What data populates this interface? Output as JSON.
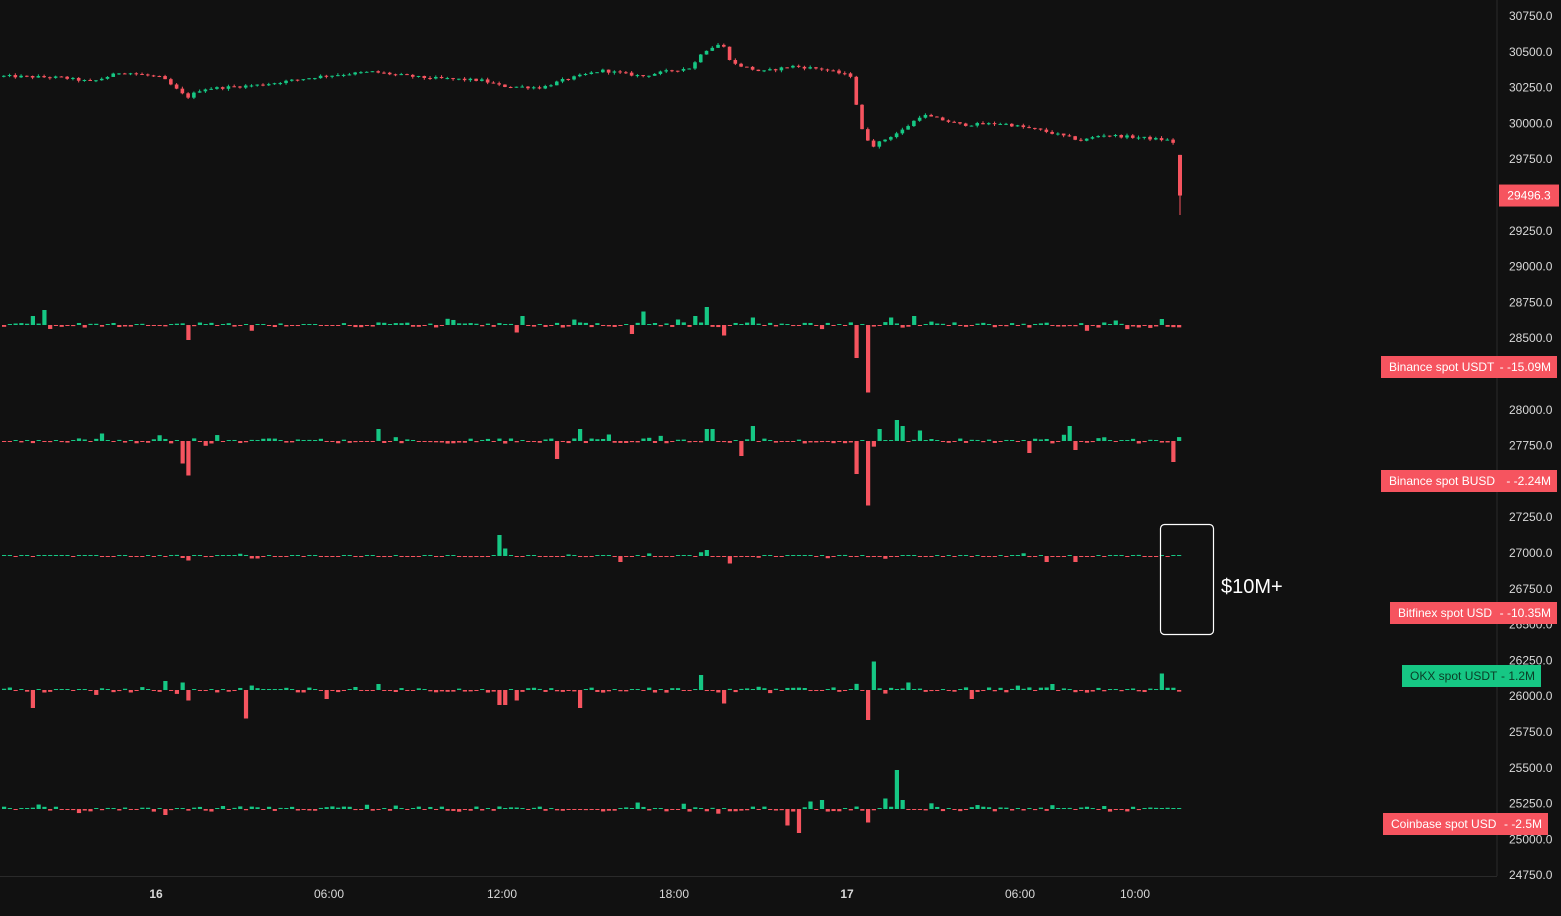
{
  "chart_data": {
    "type": "line",
    "kind": "candlestick price chart with stacked exchange net-flow (CVD delta) histograms",
    "price_axis": {
      "ticks": [
        "30750.0",
        "30500.0",
        "30250.0",
        "30000.0",
        "29750.0",
        "29500.0",
        "29250.0",
        "29000.0",
        "28750.0",
        "28500.0",
        "28250.0",
        "28000.0",
        "27750.0",
        "27500.0",
        "27250.0",
        "27000.0",
        "26750.0",
        "26500.0",
        "26250.0",
        "26000.0",
        "25750.0",
        "25500.0",
        "25250.0",
        "25000.0",
        "24750.0"
      ],
      "range": [
        24750,
        30750
      ],
      "current_price": "29496.3"
    },
    "time_axis": {
      "labels": [
        "16",
        "06:00",
        "12:00",
        "18:00",
        "17",
        "06:00",
        "10:00"
      ]
    },
    "price_series": {
      "knots": [
        [
          0,
          30330
        ],
        [
          60,
          30320
        ],
        [
          90,
          30290
        ],
        [
          120,
          30360
        ],
        [
          160,
          30320
        ],
        [
          185,
          30180
        ],
        [
          200,
          30240
        ],
        [
          260,
          30270
        ],
        [
          320,
          30330
        ],
        [
          370,
          30360
        ],
        [
          420,
          30320
        ],
        [
          480,
          30300
        ],
        [
          500,
          30260
        ],
        [
          540,
          30250
        ],
        [
          560,
          30300
        ],
        [
          600,
          30370
        ],
        [
          640,
          30330
        ],
        [
          670,
          30370
        ],
        [
          690,
          30390
        ],
        [
          700,
          30500
        ],
        [
          720,
          30560
        ],
        [
          730,
          30420
        ],
        [
          760,
          30360
        ],
        [
          790,
          30400
        ],
        [
          820,
          30380
        ],
        [
          850,
          30330
        ],
        [
          858,
          29980
        ],
        [
          870,
          29840
        ],
        [
          900,
          29950
        ],
        [
          920,
          30060
        ],
        [
          960,
          29990
        ],
        [
          1000,
          30000
        ],
        [
          1040,
          29950
        ],
        [
          1080,
          29880
        ],
        [
          1100,
          29920
        ],
        [
          1140,
          29900
        ],
        [
          1170,
          29880
        ],
        [
          1180,
          29780
        ]
      ],
      "last_candle": {
        "open": 29780,
        "high": 29780,
        "low": 29360,
        "close": 29496.3
      }
    },
    "panels": [
      {
        "name": "Binance spot USDT",
        "value": "-15.09M",
        "color": "#f6545f",
        "spikes": [
          [
            40,
            1.0
          ],
          [
            30,
            0.6
          ],
          [
            185,
            -1.0
          ],
          [
            520,
            0.6
          ],
          [
            512,
            -0.5
          ],
          [
            625,
            -0.6
          ],
          [
            638,
            0.9
          ],
          [
            703,
            1.2
          ],
          [
            690,
            0.6
          ],
          [
            720,
            -0.7
          ],
          [
            746,
            0.5
          ],
          [
            852,
            -2.2
          ],
          [
            862,
            -4.5
          ],
          [
            885,
            0.5
          ],
          [
            912,
            0.6
          ],
          [
            1180,
            -2.8
          ],
          [
            1157,
            0.4
          ],
          [
            1110,
            0.3
          ]
        ]
      },
      {
        "name": "Binance spot BUSD",
        "value": "-2.24M",
        "color": "#f6545f",
        "spikes": [
          [
            185,
            -2.3
          ],
          [
            180,
            -1.5
          ],
          [
            98,
            0.5
          ],
          [
            372,
            0.8
          ],
          [
            552,
            -1.2
          ],
          [
            575,
            0.8
          ],
          [
            700,
            0.8
          ],
          [
            710,
            0.8
          ],
          [
            738,
            -1.0
          ],
          [
            746,
            1.0
          ],
          [
            852,
            -2.2
          ],
          [
            862,
            -4.3
          ],
          [
            877,
            0.8
          ],
          [
            890,
            1.4
          ],
          [
            900,
            1.0
          ],
          [
            915,
            0.7
          ],
          [
            1025,
            -0.8
          ],
          [
            1063,
            1.0
          ],
          [
            1070,
            -0.6
          ],
          [
            1180,
            -2.6
          ],
          [
            1172,
            -1.4
          ]
        ]
      },
      {
        "name": "Bitfinex spot USD",
        "value": "-10.35M",
        "color": "#f6545f",
        "spikes": [
          [
            494,
            1.4
          ],
          [
            500,
            0.5
          ],
          [
            185,
            -0.3
          ],
          [
            703,
            0.4
          ],
          [
            698,
            0.25
          ],
          [
            724,
            -0.5
          ],
          [
            616,
            -0.4
          ],
          [
            1042,
            -0.4
          ],
          [
            1070,
            -0.4
          ],
          [
            1180,
            -2.7
          ]
        ],
        "annotation": "$10M+"
      },
      {
        "name": "OKX spot USDT",
        "value": "1.2M",
        "color": "#16c784",
        "spikes": [
          [
            27,
            -1.2
          ],
          [
            162,
            0.6
          ],
          [
            178,
            0.5
          ],
          [
            185,
            -0.7
          ],
          [
            242,
            -1.9
          ],
          [
            320,
            -0.6
          ],
          [
            374,
            0.4
          ],
          [
            494,
            -1.0
          ],
          [
            500,
            -1.0
          ],
          [
            515,
            -0.7
          ],
          [
            574,
            -1.2
          ],
          [
            697,
            1.0
          ],
          [
            720,
            -0.9
          ],
          [
            868,
            1.9
          ],
          [
            862,
            -2.0
          ],
          [
            906,
            0.5
          ],
          [
            970,
            -0.6
          ],
          [
            1050,
            0.4
          ],
          [
            1158,
            1.1
          ],
          [
            1180,
            0.7
          ]
        ]
      },
      {
        "name": "Coinbase spot USD",
        "value": "-2.5M",
        "color": "#f6545f",
        "spikes": [
          [
            784,
            -1.1
          ],
          [
            797,
            -1.6
          ],
          [
            806,
            0.5
          ],
          [
            820,
            0.6
          ],
          [
            862,
            -0.9
          ],
          [
            884,
            0.7
          ],
          [
            891,
            2.6
          ],
          [
            898,
            0.6
          ],
          [
            162,
            -0.4
          ],
          [
            1180,
            -0.6
          ]
        ]
      }
    ]
  }
}
